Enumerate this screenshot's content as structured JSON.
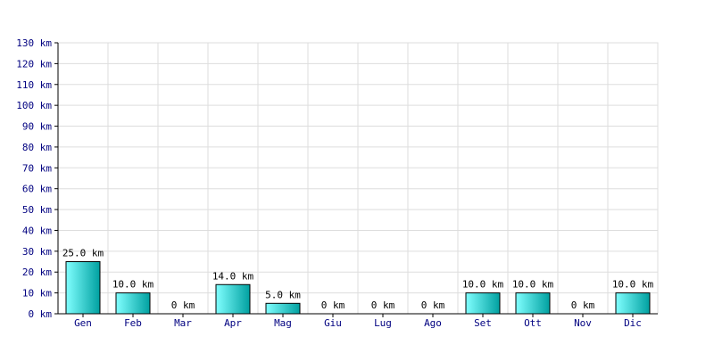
{
  "chart_data": {
    "type": "bar",
    "categories": [
      "Gen",
      "Feb",
      "Mar",
      "Apr",
      "Mag",
      "Giu",
      "Lug",
      "Ago",
      "Set",
      "Ott",
      "Nov",
      "Dic"
    ],
    "values": [
      25.0,
      10.0,
      0,
      14.0,
      5.0,
      0,
      0,
      0,
      10.0,
      10.0,
      0,
      10.0
    ],
    "data_labels": [
      "25.0 km",
      "10.0 km",
      "0 km",
      "14.0 km",
      "5.0 km",
      "0 km",
      "0 km",
      "0 km",
      "10.0 km",
      "10.0 km",
      "0 km",
      "10.0 km"
    ],
    "y_ticks": [
      0,
      10,
      20,
      30,
      40,
      50,
      60,
      70,
      80,
      90,
      100,
      110,
      120,
      130
    ],
    "y_tick_labels": [
      "0 km",
      "10 km",
      "20 km",
      "30 km",
      "40 km",
      "50 km",
      "60 km",
      "70 km",
      "80 km",
      "90 km",
      "100 km",
      "110 km",
      "120 km",
      "130 km"
    ],
    "ylim": [
      0,
      130
    ],
    "grid": true,
    "colors": {
      "bar_light": "#80ffff",
      "bar_dark": "#00a0a0",
      "bar_stroke": "#000000",
      "grid": "#dddddd",
      "axis_text": "#000080",
      "label_text": "#000000"
    }
  }
}
